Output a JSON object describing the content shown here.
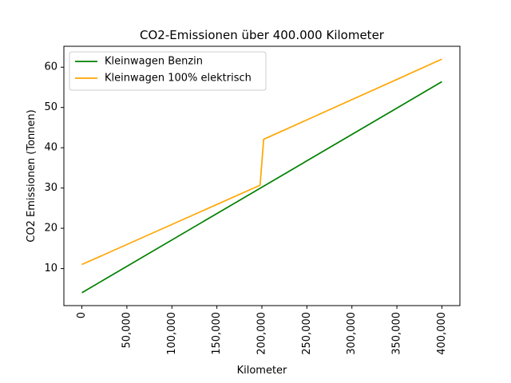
{
  "chart_data": {
    "type": "line",
    "title": "CO2-Emissionen über 400.000 Kilometer",
    "xlabel": "Kilometer",
    "ylabel": "CO2 Emissionen (Tonnen)",
    "xlim": [
      -20000,
      420000
    ],
    "ylim": [
      0.8,
      65.2
    ],
    "x_ticks": [
      0,
      50000,
      100000,
      150000,
      200000,
      250000,
      300000,
      350000,
      400000
    ],
    "x_tick_labels": [
      "0",
      "50,000",
      "100,000",
      "150,000",
      "200,000",
      "250,000",
      "300,000",
      "350,000",
      "400,000"
    ],
    "y_ticks": [
      10,
      20,
      30,
      40,
      50,
      60
    ],
    "y_tick_labels": [
      "10",
      "20",
      "30",
      "40",
      "50",
      "60"
    ],
    "grid": false,
    "legend_position": "top-left",
    "series": [
      {
        "name": "Kleinwagen Benzin",
        "color": "#008000",
        "x": [
          0,
          400000
        ],
        "y": [
          4.0,
          56.4
        ]
      },
      {
        "name": "Kleinwagen 100% elektrisch",
        "color": "#ffa500",
        "x": [
          0,
          198000,
          202000,
          400000
        ],
        "y": [
          11.0,
          30.7,
          42.1,
          62.0
        ]
      }
    ]
  }
}
